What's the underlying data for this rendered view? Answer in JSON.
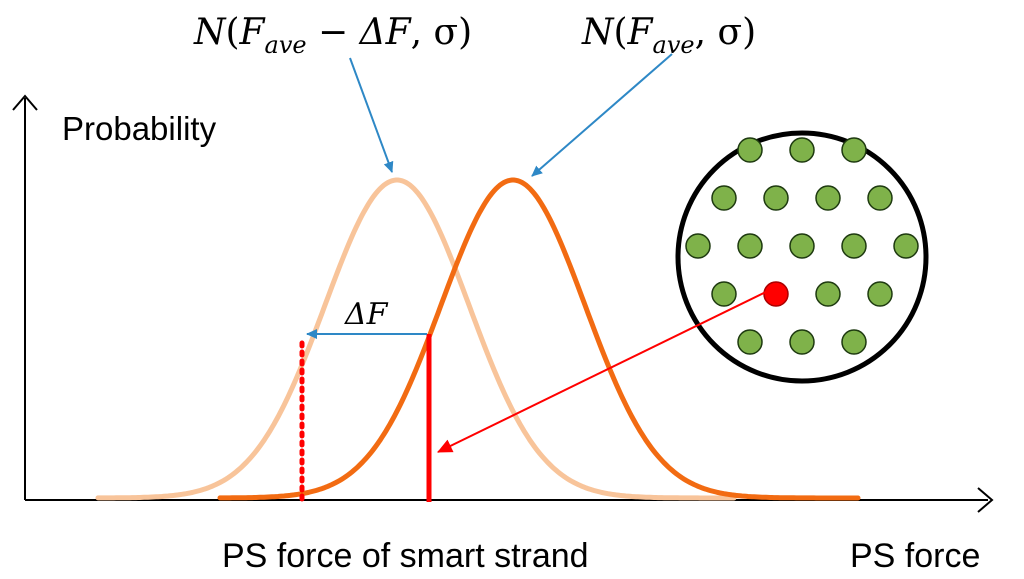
{
  "labels": {
    "y_axis": "Probability",
    "x_axis": "PS force",
    "smart_strand": "PS force of smart strand",
    "shifted_dist": "N(F_ave − ΔF, σ)",
    "base_dist": "N(F_ave, σ)",
    "delta": "ΔF"
  },
  "math": {
    "N": "N",
    "open": "(",
    "F": "F",
    "ave": "ave",
    "minus": " − ",
    "deltaF": "ΔF",
    "comma_sigma_close": ", σ)"
  },
  "chart_data": {
    "type": "line",
    "title": "",
    "xlabel": "PS force",
    "ylabel": "Probability",
    "series": [
      {
        "name": "N(F_ave − ΔF, σ)",
        "mean": 0,
        "sigma": 1,
        "style": "light"
      },
      {
        "name": "N(F_ave, σ)",
        "mean": 0.9,
        "sigma": 1,
        "style": "dark"
      }
    ],
    "smart_strand_force": 0.2,
    "delta_F": 0.9,
    "grid": false,
    "legend": "none"
  },
  "strand_section": {
    "rows": [
      3,
      4,
      5,
      4,
      3
    ],
    "smart_strand": {
      "row": 3,
      "index": 1
    },
    "colors": {
      "strand": "#7fb24a",
      "strand_edge": "#1e3a10",
      "smart": "#ff0000",
      "smart_edge": "#aa0000",
      "ring": "#000000"
    }
  },
  "colors": {
    "shifted_curve": "#f8c49a",
    "base_curve": "#f26b12",
    "callout_arrow": "#2e88c6",
    "smart_marker": "#ff0000",
    "axis": "#000000"
  }
}
